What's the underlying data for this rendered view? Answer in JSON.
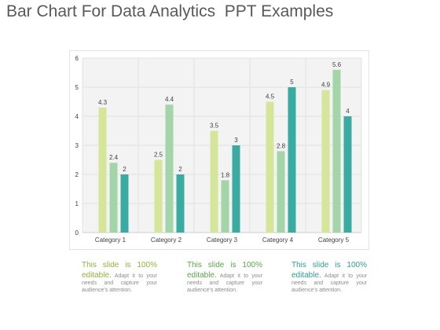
{
  "slide": {
    "title": "Bar Chart For Data Analytics  PPT Examples"
  },
  "colors": {
    "series_1": "#d5e59a",
    "series_2": "#a4d5a8",
    "series_3": "#39aba0",
    "plot_bg": "#f3f3f3",
    "caption_1": "#8db43a",
    "caption_2": "#5aa64a",
    "caption_3": "#2e9e94"
  },
  "chart_data": {
    "type": "bar",
    "title": "",
    "xlabel": "",
    "ylabel": "",
    "categories": [
      "Category 1",
      "Category 2",
      "Category 3",
      "Category 4",
      "Category 5"
    ],
    "series": [
      {
        "values": [
          4.3,
          2.5,
          3.5,
          4.5,
          4.9
        ]
      },
      {
        "values": [
          2.4,
          4.4,
          1.8,
          2.8,
          5.6
        ]
      },
      {
        "values": [
          2,
          2,
          3,
          5,
          4
        ]
      }
    ],
    "yticks": [
      0,
      1,
      2,
      3,
      4,
      5,
      6
    ],
    "ylim": [
      0,
      6
    ],
    "grid": true,
    "legend": "none"
  },
  "captions": [
    {
      "line1": "This slide is 100%",
      "line2": "editable.",
      "body": "Adapt it to your needs and capture your audience's attention."
    },
    {
      "line1": "This slide is 100%",
      "line2": "editable.",
      "body": "Adapt it to your needs and capture your audience's attention."
    },
    {
      "line1": "This slide is 100%",
      "line2": "editable.",
      "body": "Adapt it to your needs and capture your audience's attention."
    }
  ]
}
